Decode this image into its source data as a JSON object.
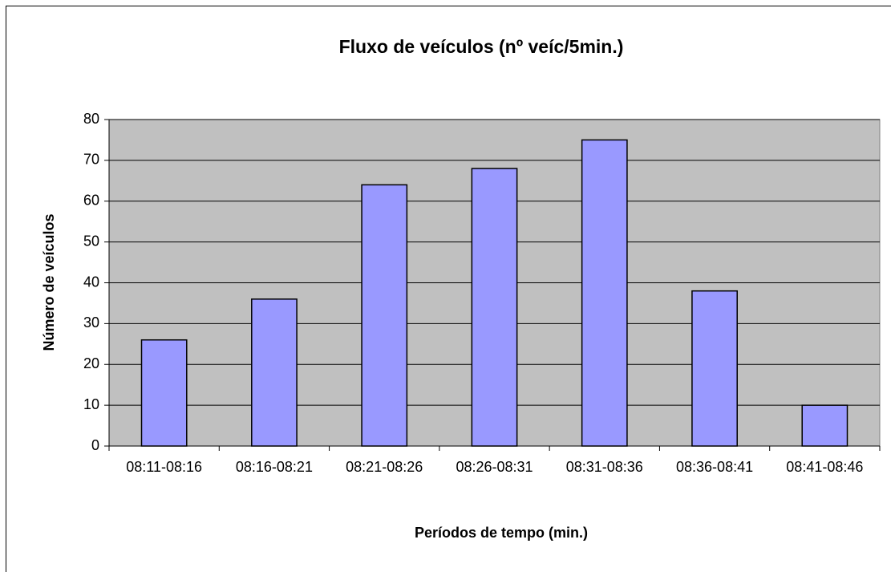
{
  "chart_data": {
    "type": "bar",
    "title": "Fluxo de veículos (nº veíc/5min.)",
    "x_label": "Períodos de tempo (min.)",
    "y_label": "Número de veículos",
    "categories": [
      "08:11-08:16",
      "08:16-08:21",
      "08:21-08:26",
      "08:26-08:31",
      "08:31-08:36",
      "08:36-08:41",
      "08:41-08:46"
    ],
    "values": [
      26,
      36,
      64,
      68,
      75,
      38,
      10
    ],
    "color": "#9999ff",
    "ylim": [
      0,
      80
    ],
    "yticks": [
      0,
      10,
      20,
      30,
      40,
      50,
      60,
      70,
      80
    ],
    "grid": true
  }
}
